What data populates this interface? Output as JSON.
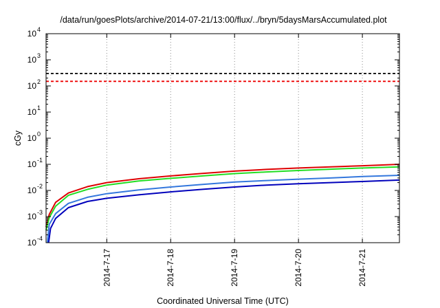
{
  "chart_data": {
    "type": "line",
    "title": "/data/run/goesPlots/archive/2014-07-21/13:00/flux/../bryn/5daysMarsAccumulated.plot",
    "xlabel": "Coordinated Universal Time (UTC)",
    "ylabel": "cGy",
    "y_scale": "log",
    "ylim_exp": [
      -4,
      4
    ],
    "xlim_days": [
      16.05,
      21.58
    ],
    "y_ticks": [
      {
        "base": "10",
        "exp": "-4"
      },
      {
        "base": "10",
        "exp": "-3"
      },
      {
        "base": "10",
        "exp": "-2"
      },
      {
        "base": "10",
        "exp": "-1"
      },
      {
        "base": "10",
        "exp": "0"
      },
      {
        "base": "10",
        "exp": "1"
      },
      {
        "base": "10",
        "exp": "2"
      },
      {
        "base": "10",
        "exp": "3"
      },
      {
        "base": "10",
        "exp": "4"
      }
    ],
    "x_ticks": [
      {
        "label": "2014-7-17",
        "day": 17
      },
      {
        "label": "2014-7-18",
        "day": 18
      },
      {
        "label": "2014-7-19",
        "day": 19
      },
      {
        "label": "2014-7-20",
        "day": 20
      },
      {
        "label": "2014-7-21",
        "day": 21
      }
    ],
    "grid": "vertical dotted at x ticks",
    "series": [
      {
        "color": "#dd0000",
        "x": [
          16.05,
          16.1,
          16.2,
          16.4,
          16.7,
          17.0,
          17.5,
          18.0,
          18.5,
          19.0,
          19.5,
          20.0,
          20.5,
          21.0,
          21.58
        ],
        "y": [
          0.0004,
          0.0012,
          0.0035,
          0.008,
          0.014,
          0.02,
          0.028,
          0.036,
          0.045,
          0.055,
          0.064,
          0.072,
          0.08,
          0.088,
          0.1
        ]
      },
      {
        "color": "#22dd22",
        "x": [
          16.05,
          16.1,
          16.2,
          16.4,
          16.7,
          17.0,
          17.5,
          18.0,
          18.5,
          19.0,
          19.5,
          20.0,
          20.5,
          21.0,
          21.58
        ],
        "y": [
          0.0003,
          0.0009,
          0.0025,
          0.0065,
          0.011,
          0.016,
          0.023,
          0.029,
          0.036,
          0.044,
          0.051,
          0.058,
          0.065,
          0.072,
          0.08
        ]
      },
      {
        "color": "#3377dd",
        "x": [
          16.07,
          16.1,
          16.2,
          16.4,
          16.7,
          17.0,
          17.5,
          18.0,
          18.5,
          19.0,
          19.5,
          20.0,
          20.5,
          21.0,
          21.58
        ],
        "y": [
          0.0001,
          0.0005,
          0.0013,
          0.0032,
          0.0055,
          0.0075,
          0.0105,
          0.0135,
          0.017,
          0.021,
          0.024,
          0.027,
          0.03,
          0.034,
          0.038
        ]
      },
      {
        "color": "#0000bb",
        "x": [
          16.09,
          16.12,
          16.2,
          16.4,
          16.7,
          17.0,
          17.5,
          18.0,
          18.5,
          19.0,
          19.5,
          20.0,
          20.5,
          21.0,
          21.58
        ],
        "y": [
          0.0001,
          0.00035,
          0.00085,
          0.0022,
          0.0038,
          0.005,
          0.0068,
          0.0088,
          0.011,
          0.0135,
          0.016,
          0.018,
          0.02,
          0.022,
          0.025
        ]
      }
    ],
    "reference_lines": [
      {
        "value": 300,
        "color": "#000000",
        "style": "dashed"
      },
      {
        "value": 150,
        "color": "#ee0000",
        "style": "dashed"
      }
    ]
  }
}
